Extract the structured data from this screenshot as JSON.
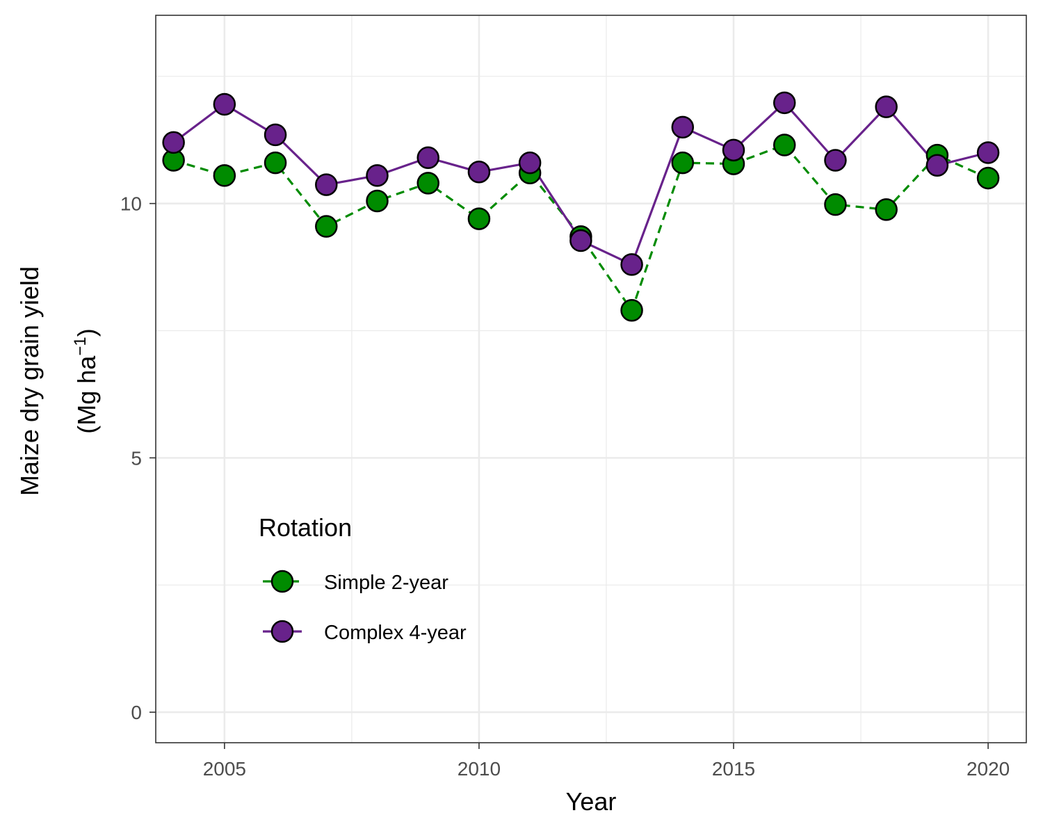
{
  "chart_data": {
    "type": "line",
    "xlabel": "Year",
    "ylabel_line1": "Maize dry grain yield",
    "ylabel_line2_main": "(Mg  ha",
    "ylabel_line2_sup": "−1",
    "ylabel_line2_end": ")",
    "xlim": [
      2003.65,
      2020.75
    ],
    "ylim": [
      -0.6,
      13.7
    ],
    "x_ticks": [
      2005,
      2010,
      2015,
      2020
    ],
    "x_tick_labels": [
      "2005",
      "2010",
      "2015",
      "2020"
    ],
    "x_minor_ticks": [
      2007.5,
      2012.5,
      2017.5
    ],
    "y_ticks": [
      0,
      5,
      10
    ],
    "y_tick_labels": [
      "0",
      "5",
      "10"
    ],
    "y_minor_ticks": [
      2.5,
      7.5,
      12.5
    ],
    "grid": true,
    "legend": {
      "title": "Rotation",
      "position": "inside-bottom-left"
    },
    "x": [
      2004,
      2005,
      2006,
      2007,
      2008,
      2009,
      2010,
      2011,
      2012,
      2013,
      2014,
      2015,
      2016,
      2017,
      2018,
      2019,
      2020
    ],
    "series": [
      {
        "name": "Simple 2-year",
        "color": "#008b00",
        "line_style": "dashed",
        "values": [
          10.85,
          10.55,
          10.8,
          9.55,
          10.05,
          10.4,
          9.7,
          10.6,
          9.35,
          7.9,
          10.8,
          10.78,
          11.15,
          9.98,
          9.88,
          10.95,
          10.5
        ]
      },
      {
        "name": "Complex 4-year",
        "color": "#68228b",
        "line_style": "solid",
        "values": [
          11.2,
          11.95,
          11.35,
          10.37,
          10.55,
          10.9,
          10.62,
          10.8,
          9.27,
          8.8,
          11.5,
          11.05,
          11.98,
          10.85,
          11.9,
          10.75,
          11.0
        ]
      }
    ]
  }
}
